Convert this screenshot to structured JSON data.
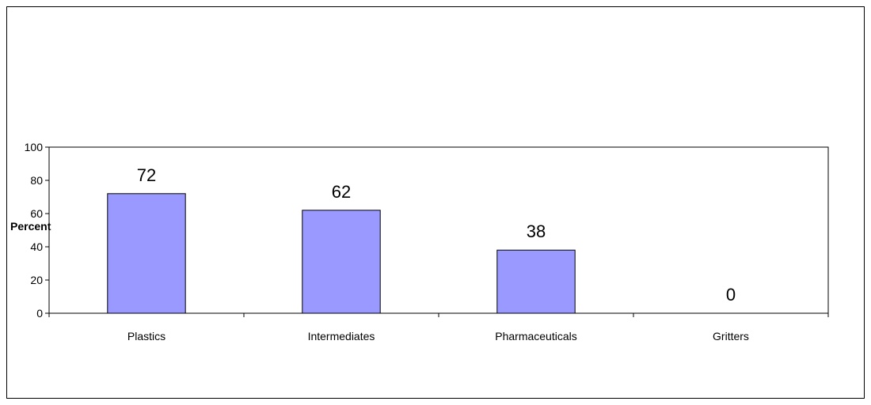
{
  "chart_data": {
    "type": "bar",
    "categories": [
      "Plastics",
      "Intermediates",
      "Pharmaceuticals",
      "Gritters"
    ],
    "values": [
      72,
      62,
      38,
      0
    ],
    "title": "",
    "xlabel": "",
    "ylabel": "Percent",
    "ylim": [
      0,
      100
    ],
    "yticks": [
      0,
      20,
      40,
      60,
      80,
      100
    ],
    "data_labels": true,
    "grid": false,
    "legend": "none",
    "bar_color": "#9999ff",
    "bar_edge_color": "#000000"
  }
}
